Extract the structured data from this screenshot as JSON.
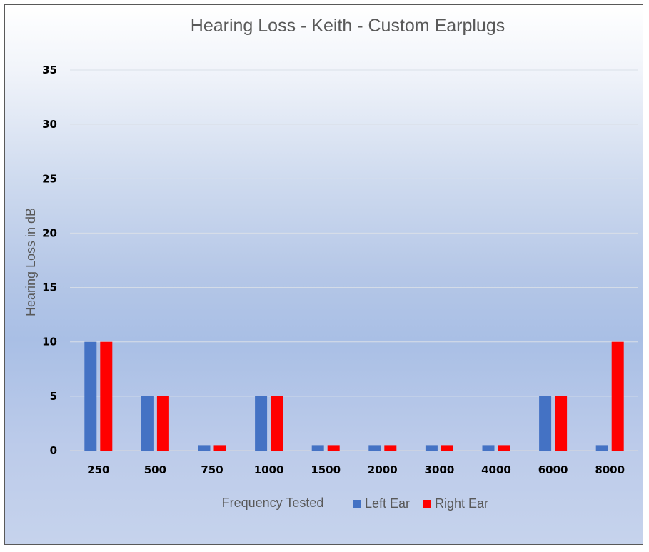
{
  "chart_data": {
    "type": "bar",
    "title": "Hearing Loss - Keith - Custom Earplugs",
    "xlabel": "Frequency Tested",
    "ylabel": "Hearing Loss in dB",
    "categories": [
      "250",
      "500",
      "750",
      "1000",
      "1500",
      "2000",
      "3000",
      "4000",
      "6000",
      "8000"
    ],
    "series": [
      {
        "name": "Left Ear",
        "color": "#4472c4",
        "values": [
          10,
          5,
          0.5,
          5,
          0.5,
          0.5,
          0.5,
          0.5,
          5,
          0.5
        ]
      },
      {
        "name": "Right Ear",
        "color": "#ff0000",
        "values": [
          10,
          5,
          0.5,
          5,
          0.5,
          0.5,
          0.5,
          0.5,
          5,
          10
        ]
      }
    ],
    "ylim": [
      0,
      35
    ],
    "yticks": [
      "0",
      "5",
      "10",
      "15",
      "20",
      "25",
      "30",
      "35"
    ],
    "grid": true,
    "legend_position": "bottom"
  }
}
